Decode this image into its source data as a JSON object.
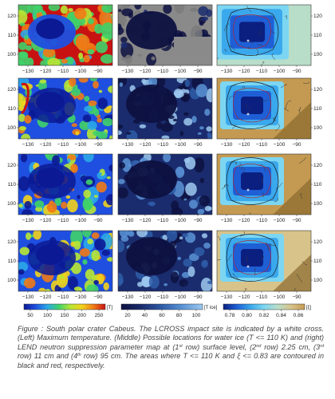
{
  "figure": {
    "columns": [
      {
        "name": "Maximum temperature",
        "colormap": [
          "#0b1a94",
          "#1f4fe0",
          "#2aa8e8",
          "#3fd26a",
          "#b8e634",
          "#f2d21c",
          "#f07a16",
          "#c81212"
        ],
        "colorbar": {
          "ticks": [
            "50",
            "100",
            "150",
            "200",
            "250"
          ],
          "unit": "[T]"
        }
      },
      {
        "name": "Possible locations for water ice",
        "colormap": [
          "#0d1140",
          "#1a2c6e",
          "#2e5ca8",
          "#5a93d6",
          "#9cc8f0"
        ],
        "colorbar": {
          "ticks": [
            "20",
            "40",
            "60",
            "80",
            "100"
          ],
          "unit": "[T ice]"
        }
      },
      {
        "name": "LEND neutron suppression parameter",
        "colormap": [
          "#0b1f80",
          "#1e5fd6",
          "#3aa8ec",
          "#7cd6f2",
          "#b8ddc8",
          "#d8c38a",
          "#c49a52"
        ],
        "colorbar": {
          "ticks": [
            "0.78",
            "0.80",
            "0.82",
            "0.84",
            "0.86"
          ],
          "unit": "[ξ]"
        }
      }
    ],
    "rows": [
      "surface level",
      "2.25 cm",
      "11 cm",
      "95 cm"
    ],
    "x_ticks": [
      "−130",
      "−120",
      "−110",
      "−100",
      "−90"
    ],
    "y_ticks": [
      "120",
      "110",
      "100"
    ]
  },
  "caption": {
    "label": "Figure :",
    "s1": " South polar crater Cabeus. The LCROSS impact site is indicated by a white cross. (Left) Maximum temperature. (Middle) Possible locations for water ice (T <= 110 K) and (right) LEND neutron suppression parameter map at (1",
    "sup1": "st",
    "s2": " row) surface level, (2",
    "sup2": "nd",
    "s3": " row) 2.25 cm, (3",
    "sup3": "rd",
    "s4": " row) 11 cm and (4",
    "sup4": "th",
    "s5": " row) 95 cm. The areas where T <= 110 K and ξ <= 0.83 are contoured in black and red, respectively."
  }
}
